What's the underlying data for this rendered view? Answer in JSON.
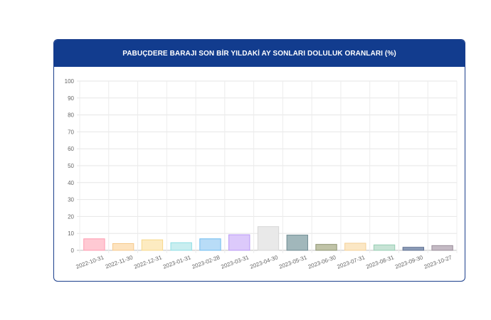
{
  "chart_data": {
    "type": "bar",
    "title": "PABUÇDERE BARAJI SON BİR YILDAKİ AY SONLARI DOLULUK ORANLARI (%)",
    "xlabel": "",
    "ylabel": "",
    "ylim": [
      0,
      100
    ],
    "yticks": [
      "0",
      "10",
      "20",
      "30",
      "40",
      "50",
      "60",
      "70",
      "80",
      "90",
      "100"
    ],
    "grid": true,
    "legend": "none",
    "categories": [
      "2022-10-31",
      "2022-11-30",
      "2022-12-31",
      "2023-01-31",
      "2023-02-28",
      "2023-03-31",
      "2023-04-30",
      "2023-05-31",
      "2023-06-30",
      "2023-07-31",
      "2023-08-31",
      "2023-09-30",
      "2023-10-27"
    ],
    "values": [
      6.8,
      4.0,
      6.2,
      4.5,
      6.8,
      9.2,
      14.0,
      9.0,
      3.5,
      4.2,
      3.2,
      1.8,
      2.8
    ],
    "bar_fills": [
      "#ffc9d3",
      "#fde3bf",
      "#fdebc1",
      "#c9eef0",
      "#b8dcf7",
      "#dcc9fb",
      "#e9e9e9",
      "#a1b7bb",
      "#c0c3a7",
      "#fbe7c5",
      "#c7e3d5",
      "#8c9cb8",
      "#c4bac4"
    ],
    "bar_strokes": [
      "#ff9bb0",
      "#f6c98d",
      "#f7d88a",
      "#8edfe4",
      "#6fbdf0",
      "#b99af6",
      "#d6d6d6",
      "#6f8b92",
      "#8e9471",
      "#f4d197",
      "#95cdb2",
      "#5e6f91",
      "#9a8d9a"
    ]
  }
}
